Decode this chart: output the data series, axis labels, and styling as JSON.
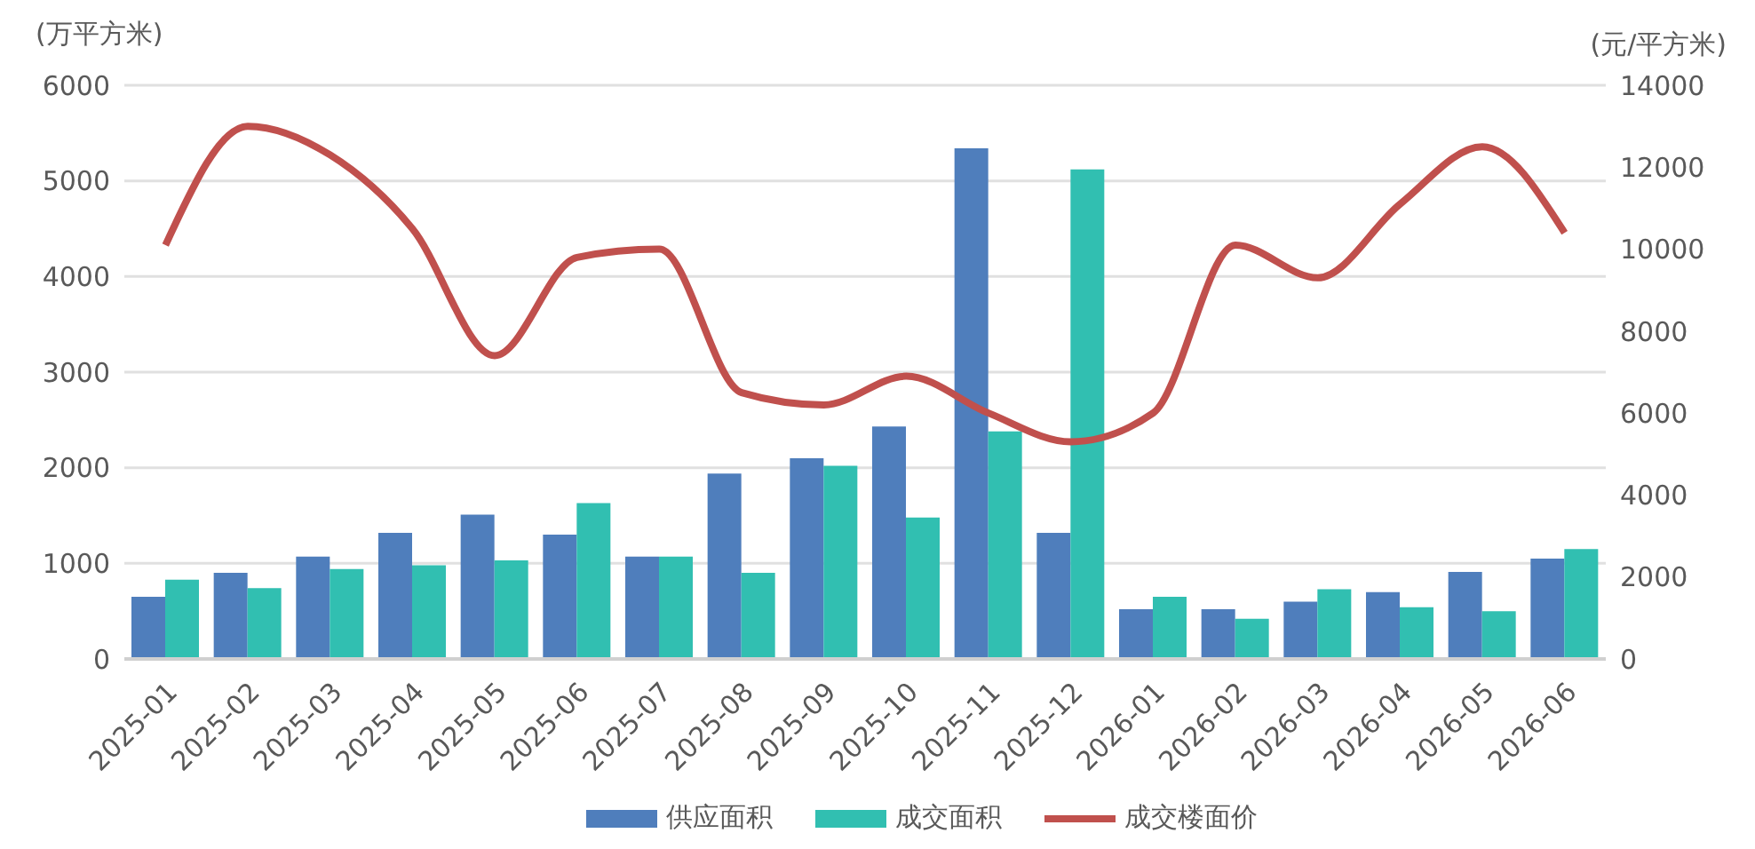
{
  "chart_data": {
    "type": "bar",
    "ylabel": "(万平方米)",
    "y2label": "(元/平方米)",
    "categories": [
      "2025-01",
      "2025-02",
      "2025-03",
      "2025-04",
      "2025-05",
      "2025-06",
      "2025-07",
      "2025-08",
      "2025-09",
      "2025-10",
      "2025-11",
      "2025-12",
      "2026-01",
      "2026-02",
      "2026-03",
      "2026-04",
      "2026-05",
      "2026-06"
    ],
    "series": [
      {
        "name": "供应面积",
        "color": "#4f7ebc",
        "values": [
          650,
          900,
          1070,
          1320,
          1510,
          1300,
          1070,
          1940,
          2100,
          2430,
          5340,
          1320,
          520,
          520,
          600,
          700,
          910,
          1050
        ]
      },
      {
        "name": "成交面积",
        "color": "#31bfb1",
        "values": [
          830,
          740,
          940,
          980,
          1030,
          1630,
          1070,
          900,
          2020,
          1480,
          2380,
          5120,
          650,
          420,
          730,
          540,
          500,
          1150
        ]
      },
      {
        "name": "成交楼面价",
        "type": "line",
        "axis": "y2",
        "color": "#c0504d",
        "values": [
          10100,
          13000,
          12300,
          10500,
          7400,
          9800,
          10000,
          6500,
          6200,
          6900,
          6000,
          5300,
          6000,
          10100,
          9300,
          11100,
          12500,
          10400
        ]
      }
    ],
    "ylim": [
      0,
      6000
    ],
    "yticks": [
      0,
      1000,
      2000,
      3000,
      4000,
      5000,
      6000
    ],
    "y2lim": [
      0,
      14000
    ],
    "y2ticks": [
      0,
      2000,
      4000,
      6000,
      8000,
      10000,
      12000,
      14000
    ],
    "grid": "y",
    "legend": "bottom",
    "marker": "none"
  }
}
